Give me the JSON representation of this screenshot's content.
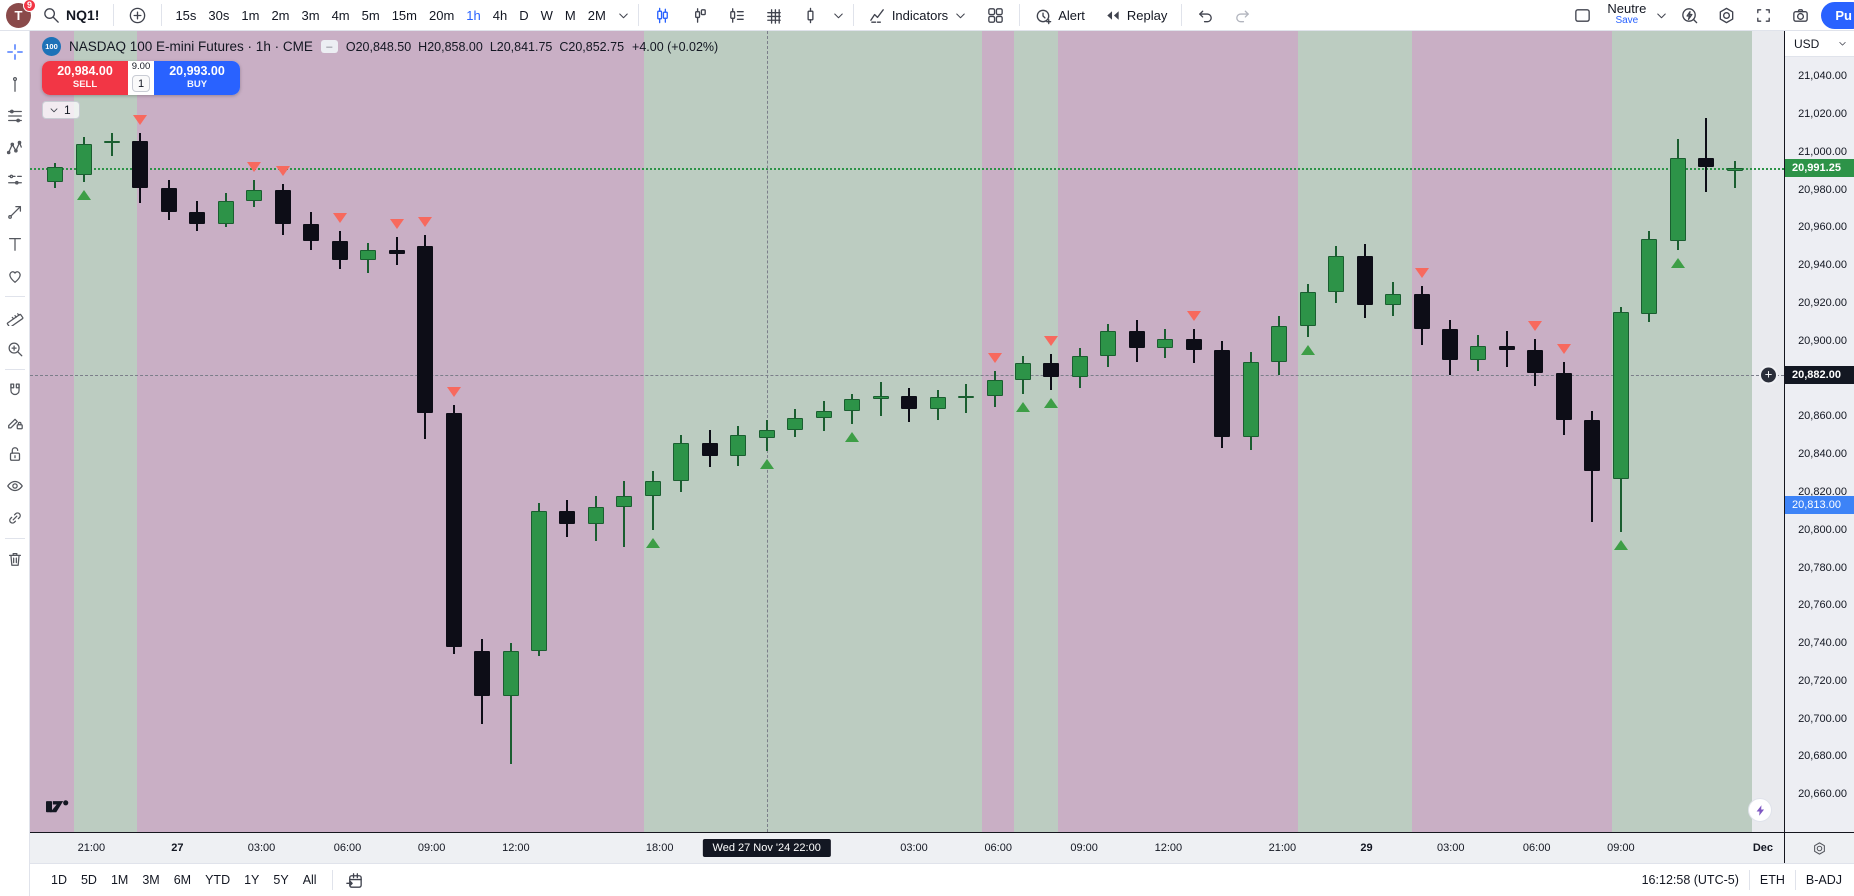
{
  "top_toolbar": {
    "avatar": {
      "initial": "T",
      "badge": "9"
    },
    "symbol_search": "NQ1!",
    "timeframes": [
      "15s",
      "30s",
      "1m",
      "2m",
      "3m",
      "4m",
      "5m",
      "15m",
      "20m",
      "1h",
      "4h",
      "D",
      "W",
      "M",
      "2M"
    ],
    "active_timeframe": "1h",
    "indicators_label": "Indicators",
    "alert_label": "Alert",
    "replay_label": "Replay",
    "layout_name": "Neutre",
    "save_label": "Save",
    "publish_label": "Pu"
  },
  "left_toolbar": {
    "tools": [
      "crosshair",
      "trend-line",
      "horizontal-lines",
      "xabcd-pattern",
      "forecast",
      "arrow-marker",
      "text",
      "emoji",
      "ruler",
      "zoom-in",
      "magnet",
      "drawing-pencil",
      "lock",
      "hide",
      "link",
      "remove"
    ],
    "active_tool": "crosshair"
  },
  "legend": {
    "badge": "100",
    "title": "NASDAQ 100 E-mini Futures · 1h · CME",
    "ohlc": [
      {
        "k": "O",
        "v": "20,848.50"
      },
      {
        "k": "H",
        "v": "20,858.00"
      },
      {
        "k": "L",
        "v": "20,841.75"
      },
      {
        "k": "C",
        "v": "20,852.75"
      }
    ],
    "change": "+4.00 (+0.02%)"
  },
  "trade_panel": {
    "sell_price": "20,984.00",
    "sell_label": "SELL",
    "spread": "9.00",
    "quantity": "1",
    "buy_price": "20,993.00",
    "buy_label": "BUY"
  },
  "objects_tray": {
    "count": "1"
  },
  "price_axis": {
    "currency": "USD",
    "ticks": [
      {
        "price": 21040,
        "label": "21,040.00"
      },
      {
        "price": 21020,
        "label": "21,020.00"
      },
      {
        "price": 21000,
        "label": "21,000.00"
      },
      {
        "price": 20980,
        "label": "20,980.00"
      },
      {
        "price": 20960,
        "label": "20,960.00"
      },
      {
        "price": 20940,
        "label": "20,940.00"
      },
      {
        "price": 20920,
        "label": "20,920.00"
      },
      {
        "price": 20900,
        "label": "20,900.00"
      },
      {
        "price": 20860,
        "label": "20,860.00"
      },
      {
        "price": 20840,
        "label": "20,840.00"
      },
      {
        "price": 20820,
        "label": "20,820.00"
      },
      {
        "price": 20800,
        "label": "20,800.00"
      },
      {
        "price": 20780,
        "label": "20,780.00"
      },
      {
        "price": 20760,
        "label": "20,760.00"
      },
      {
        "price": 20740,
        "label": "20,740.00"
      },
      {
        "price": 20720,
        "label": "20,720.00"
      },
      {
        "price": 20700,
        "label": "20,700.00"
      },
      {
        "price": 20680,
        "label": "20,680.00"
      },
      {
        "price": 20660,
        "label": "20,660.00"
      }
    ],
    "current_label": "20,991.25",
    "crosshair_label": "20,882.00",
    "alert_label": "20,813.00"
  },
  "time_axis": {
    "labels": [
      {
        "t": "21:00",
        "x": 3.5
      },
      {
        "t": "27",
        "x": 8.4,
        "bold": true
      },
      {
        "t": "03:00",
        "x": 13.2
      },
      {
        "t": "06:00",
        "x": 18.1
      },
      {
        "t": "09:00",
        "x": 22.9
      },
      {
        "t": "12:00",
        "x": 27.7
      },
      {
        "t": "18:00",
        "x": 35.9
      },
      {
        "t": "03:00",
        "x": 50.4
      },
      {
        "t": "06:00",
        "x": 55.2
      },
      {
        "t": "09:00",
        "x": 60.1
      },
      {
        "t": "12:00",
        "x": 64.9
      },
      {
        "t": "21:00",
        "x": 71.4
      },
      {
        "t": "29",
        "x": 76.2,
        "bold": true
      },
      {
        "t": "03:00",
        "x": 81.0
      },
      {
        "t": "06:00",
        "x": 85.9
      },
      {
        "t": "09:00",
        "x": 90.7
      },
      {
        "t": "Dec",
        "x": 98.8,
        "bold": true
      }
    ],
    "tooltip": "Wed 27 Nov '24   22:00",
    "tooltip_x": 42.0
  },
  "bottom_bar": {
    "ranges": [
      "1D",
      "5D",
      "1M",
      "3M",
      "6M",
      "YTD",
      "1Y",
      "5Y",
      "All"
    ],
    "clock": "16:12:58 (UTC-5)",
    "session": "ETH",
    "adjustment": "B-ADJ"
  },
  "theme": {
    "accent": "#2962ff",
    "sell_red": "#f23645",
    "up": "#2d9348",
    "up_border": "#1a5e30",
    "down": "#0d0d17",
    "band_pink": "#c9afc5",
    "band_green": "#bcccc1",
    "band_gray": "#e9eaee",
    "marker_red": "#f7695e",
    "marker_green": "#3d9e46",
    "current_label_bg": "#2d9348",
    "crosshair_label_bg": "#131722",
    "alert_label_bg": "#3d83f7"
  },
  "chart_data": {
    "type": "candlestick",
    "symbol": "NQ1!",
    "title": "NASDAQ 100 E-mini Futures, 1h, CME",
    "price_max": 21064,
    "price_min": 20640,
    "current_price": 20991.25,
    "alert_price": 20813,
    "crosshair": {
      "price": 20882,
      "index": 25
    },
    "x0_pct": 1.43,
    "dx_pct": 1.623,
    "candles": [
      [
        20984,
        20994,
        20981,
        20992,
        ""
      ],
      [
        20988,
        21008,
        20984,
        21004,
        "u"
      ],
      [
        21005,
        21010,
        20998,
        21006,
        ""
      ],
      [
        21006,
        21010,
        20973,
        20981,
        "d"
      ],
      [
        20981,
        20985,
        20964,
        20968,
        ""
      ],
      [
        20968,
        20974,
        20958,
        20962,
        ""
      ],
      [
        20962,
        20978,
        20960,
        20974,
        ""
      ],
      [
        20974,
        20985,
        20971,
        20980,
        "d"
      ],
      [
        20980,
        20983,
        20956,
        20962,
        "d"
      ],
      [
        20962,
        20968,
        20948,
        20953,
        ""
      ],
      [
        20953,
        20958,
        20938,
        20943,
        "d"
      ],
      [
        20943,
        20952,
        20936,
        20948,
        ""
      ],
      [
        20948,
        20955,
        20940,
        20946,
        "d"
      ],
      [
        20950,
        20956,
        20848,
        20862,
        "d"
      ],
      [
        20862,
        20866,
        20734,
        20738,
        "d"
      ],
      [
        20736,
        20742,
        20697,
        20712,
        ""
      ],
      [
        20712,
        20740,
        20676,
        20736,
        ""
      ],
      [
        20736,
        20814,
        20733,
        20810,
        ""
      ],
      [
        20810,
        20816,
        20796,
        20803,
        ""
      ],
      [
        20803,
        20818,
        20794,
        20812,
        ""
      ],
      [
        20812,
        20826,
        20791,
        20818,
        ""
      ],
      [
        20818,
        20831,
        20800,
        20826,
        "u"
      ],
      [
        20826,
        20850,
        20820,
        20846,
        ""
      ],
      [
        20846,
        20853,
        20833,
        20839,
        ""
      ],
      [
        20839,
        20855,
        20834,
        20850,
        ""
      ],
      [
        20848.5,
        20858,
        20841.75,
        20852.75,
        "u"
      ],
      [
        20853,
        20864,
        20849,
        20859,
        ""
      ],
      [
        20859,
        20868,
        20852,
        20863,
        ""
      ],
      [
        20863,
        20872,
        20856,
        20869,
        "u"
      ],
      [
        20869,
        20878,
        20860,
        20871,
        ""
      ],
      [
        20871,
        20875,
        20857,
        20864,
        ""
      ],
      [
        20864,
        20874,
        20858,
        20870,
        ""
      ],
      [
        20870,
        20877,
        20862,
        20871,
        ""
      ],
      [
        20871,
        20884,
        20865,
        20879,
        "d"
      ],
      [
        20879,
        20892,
        20872,
        20888,
        "u"
      ],
      [
        20888,
        20893,
        20874,
        20881,
        "du"
      ],
      [
        20881,
        20896,
        20875,
        20892,
        ""
      ],
      [
        20892,
        20909,
        20886,
        20905,
        ""
      ],
      [
        20905,
        20911,
        20889,
        20896,
        ""
      ],
      [
        20896,
        20906,
        20891,
        20901,
        ""
      ],
      [
        20901,
        20906,
        20888,
        20895,
        "d"
      ],
      [
        20895,
        20900,
        20843,
        20849,
        ""
      ],
      [
        20849,
        20894,
        20842,
        20889,
        ""
      ],
      [
        20889,
        20913,
        20882,
        20908,
        ""
      ],
      [
        20908,
        20930,
        20902,
        20926,
        "u"
      ],
      [
        20926,
        20950,
        20920,
        20945,
        ""
      ],
      [
        20945,
        20951,
        20912,
        20919,
        ""
      ],
      [
        20919,
        20931,
        20913,
        20925,
        ""
      ],
      [
        20925,
        20929,
        20898,
        20906,
        "d"
      ],
      [
        20906,
        20911,
        20882,
        20890,
        ""
      ],
      [
        20890,
        20903,
        20884,
        20897,
        ""
      ],
      [
        20897,
        20905,
        20886,
        20895,
        ""
      ],
      [
        20895,
        20901,
        20876,
        20883,
        "d"
      ],
      [
        20883,
        20889,
        20850,
        20858,
        "d"
      ],
      [
        20858,
        20863,
        20804,
        20831,
        ""
      ],
      [
        20827,
        20918,
        20799,
        20915,
        "u"
      ],
      [
        20914,
        20958,
        20910,
        20954,
        ""
      ],
      [
        20953,
        21007,
        20948,
        20997,
        "u"
      ],
      [
        20997,
        21018,
        20979,
        20992,
        ""
      ],
      [
        20990,
        20995,
        20981,
        20991.25,
        ""
      ]
    ],
    "sessions": [
      {
        "start": 0,
        "end": 2.5,
        "color": "pink"
      },
      {
        "start": 2.5,
        "end": 6.1,
        "color": "green"
      },
      {
        "start": 6.1,
        "end": 35.0,
        "color": "pink"
      },
      {
        "start": 35.0,
        "end": 54.3,
        "color": "green"
      },
      {
        "start": 54.3,
        "end": 56.1,
        "color": "pink"
      },
      {
        "start": 56.1,
        "end": 58.6,
        "color": "green"
      },
      {
        "start": 58.6,
        "end": 72.3,
        "color": "pink"
      },
      {
        "start": 72.3,
        "end": 78.8,
        "color": "green"
      },
      {
        "start": 78.8,
        "end": 90.2,
        "color": "pink"
      },
      {
        "start": 90.2,
        "end": 98.2,
        "color": "green"
      },
      {
        "start": 98.2,
        "end": 100,
        "color": "gray"
      }
    ]
  }
}
